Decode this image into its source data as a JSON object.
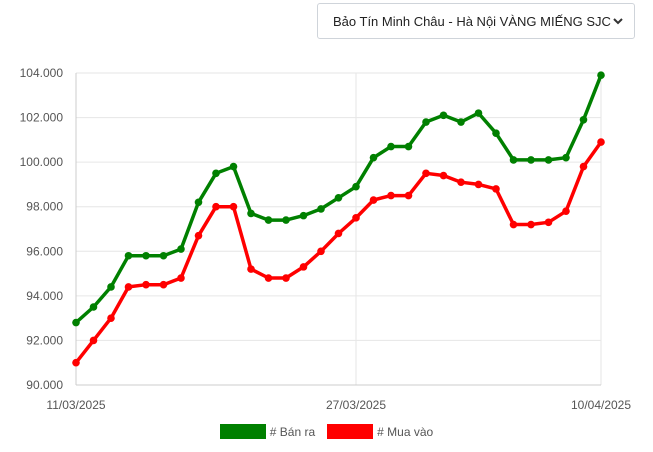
{
  "selector": {
    "value": "Bảo Tín Minh Châu - Hà Nội VÀNG MIẾNG SJC",
    "icon": "chevron-down-icon"
  },
  "chart_data": {
    "type": "line",
    "title": "",
    "xlabel": "",
    "ylabel": "",
    "ylim": [
      90,
      104
    ],
    "yticks": [
      90,
      92,
      94,
      96,
      98,
      100,
      102,
      104
    ],
    "ytick_labels": [
      "90.000",
      "92.000",
      "94.000",
      "96.000",
      "98.000",
      "100.000",
      "102.000",
      "104.000"
    ],
    "xtick_labels": [
      "11/03/2025",
      "27/03/2025",
      "10/04/2025"
    ],
    "xtick_indices": [
      0,
      16,
      30
    ],
    "grid": true,
    "legend_position": "bottom",
    "series": [
      {
        "name": "# Bán ra",
        "color": "#008000",
        "values": [
          92.8,
          93.5,
          94.4,
          95.8,
          95.8,
          95.8,
          96.1,
          98.2,
          99.5,
          99.8,
          97.7,
          97.4,
          97.4,
          97.6,
          97.9,
          98.4,
          98.9,
          100.2,
          100.7,
          100.7,
          101.8,
          102.1,
          101.8,
          102.2,
          101.3,
          100.1,
          100.1,
          100.1,
          100.2,
          101.9,
          103.9
        ]
      },
      {
        "name": "# Mua vào",
        "color": "#ff0000",
        "values": [
          91.0,
          92.0,
          93.0,
          94.4,
          94.5,
          94.5,
          94.8,
          96.7,
          98.0,
          98.0,
          95.2,
          94.8,
          94.8,
          95.3,
          96.0,
          96.8,
          97.5,
          98.3,
          98.5,
          98.5,
          99.5,
          99.4,
          99.1,
          99.0,
          98.8,
          97.2,
          97.2,
          97.3,
          97.8,
          99.8,
          100.9
        ]
      }
    ]
  }
}
